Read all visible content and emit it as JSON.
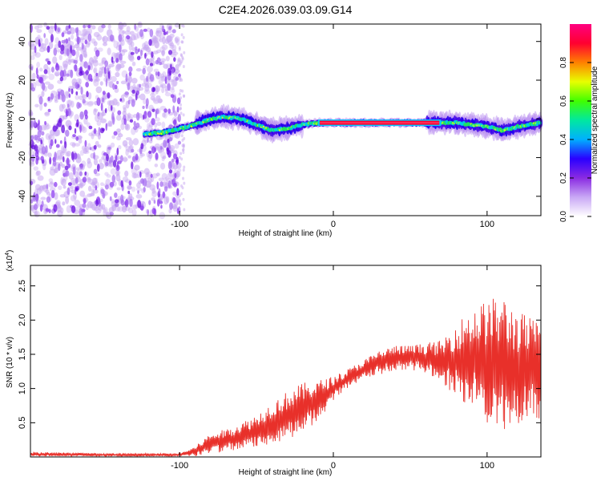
{
  "title": "C2E4.2026.039.03.09.G14",
  "colors": {
    "snr_line": "#e8302a",
    "ridge": "#e8003a",
    "scatter": "#7a20e0",
    "axis": "#000000"
  },
  "chart_data": [
    {
      "type": "heatmap",
      "xlabel": "Height of straight line (km)",
      "ylabel": "Frequency (Hz)",
      "xlim": [
        -197,
        135
      ],
      "ylim": [
        -50,
        49
      ],
      "xticks": [
        -100,
        0,
        100
      ],
      "yticks": [
        -40,
        -20,
        0,
        20,
        40
      ],
      "noise_region_x": [
        -197,
        -100
      ],
      "ridge": {
        "x": [
          -123,
          -110,
          -100,
          -90,
          -80,
          -70,
          -60,
          -50,
          -40,
          -30,
          -20,
          -10,
          0,
          20,
          40,
          60,
          80,
          90,
          100,
          110,
          120,
          135
        ],
        "y": [
          -8,
          -7,
          -5,
          -3,
          0,
          1,
          0,
          -3,
          -6,
          -5,
          -3,
          -2,
          -2,
          -2,
          -2,
          -2,
          -2,
          -3,
          -4,
          -6,
          -4,
          -2
        ]
      },
      "colorbar": {
        "label": "Normalized spectral amplitude",
        "ticks": [
          "0.0",
          "0.2",
          "0.4",
          "0.6",
          "0.8"
        ],
        "tick_values": [
          0,
          0.2,
          0.4,
          0.6,
          0.8
        ],
        "range": [
          0,
          1
        ],
        "stops": [
          "#ffffff",
          "#c9a8f5",
          "#8a2be2",
          "#2a00ff",
          "#00b0ff",
          "#00e8a0",
          "#40ff00",
          "#e8ff00",
          "#ff8000",
          "#ff0030",
          "#ff0080"
        ]
      }
    },
    {
      "type": "line",
      "xlabel": "Height of straight line (km)",
      "ylabel": "SNR (10 * v/v)",
      "scale_label": "(x10",
      "scale_exp": "4",
      "scale_close": ")",
      "xlim": [
        -197,
        135
      ],
      "ylim": [
        0,
        2.8
      ],
      "xticks": [
        -100,
        0,
        100
      ],
      "yticks": [
        0.5,
        1.0,
        1.5,
        2.0,
        2.5
      ],
      "ytick_labels": [
        "0.5",
        "1.0",
        "1.5",
        "2.0",
        "2.5"
      ],
      "series": [
        {
          "name": "SNR",
          "x": [
            -197,
            -150,
            -100,
            -90,
            -80,
            -70,
            -60,
            -50,
            -40,
            -30,
            -20,
            -10,
            0,
            10,
            20,
            30,
            40,
            50,
            60,
            70,
            80,
            90,
            100,
            110,
            120,
            135
          ],
          "y": [
            0.04,
            0.03,
            0.03,
            0.08,
            0.2,
            0.24,
            0.3,
            0.38,
            0.5,
            0.6,
            0.72,
            0.82,
            1.0,
            1.15,
            1.28,
            1.38,
            1.45,
            1.45,
            1.45,
            1.4,
            1.42,
            1.45,
            1.4,
            1.35,
            1.3,
            1.25
          ],
          "amplitude": [
            0.03,
            0.02,
            0.02,
            0.06,
            0.12,
            0.14,
            0.17,
            0.2,
            0.25,
            0.3,
            0.3,
            0.25,
            0.15,
            0.12,
            0.12,
            0.15,
            0.15,
            0.15,
            0.18,
            0.25,
            0.45,
            0.6,
            0.75,
            0.85,
            0.7,
            0.6
          ]
        }
      ]
    }
  ]
}
